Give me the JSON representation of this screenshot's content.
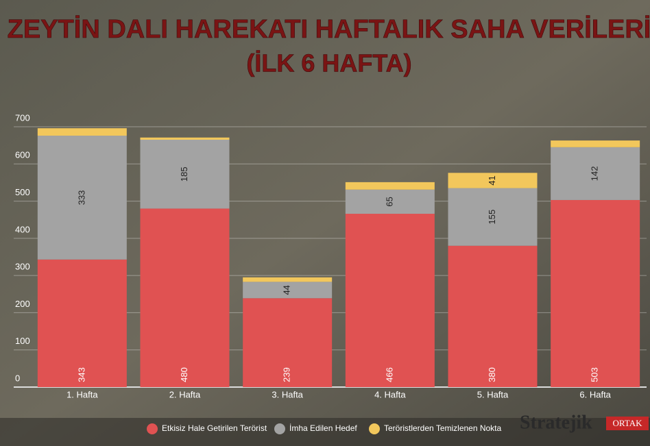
{
  "chart_data": {
    "type": "stacked_bar",
    "title": "ZEYTİN DALI HAREKATI HAFTALIK SAHA VERİLERİ",
    "subtitle": "(İLK 6 HAFTA)",
    "categories": [
      "1. Hafta",
      "2. Hafta",
      "3. Hafta",
      "4. Hafta",
      "5. Hafta",
      "6. Hafta"
    ],
    "series": [
      {
        "name": "Etkisiz Hale Getirilen Terörist",
        "color": "#e05252",
        "values": [
          343,
          480,
          239,
          466,
          380,
          503
        ]
      },
      {
        "name": "İmha Edilen Hedef",
        "color": "#a3a3a3",
        "values": [
          333,
          185,
          44,
          65,
          155,
          142
        ]
      },
      {
        "name": "Teröristlerden Temizlenen Nokta",
        "color": "#f2c75c",
        "values": [
          20,
          6,
          12,
          20,
          41,
          18
        ]
      }
    ],
    "ylim": [
      0,
      700
    ],
    "yticks": [
      0,
      100,
      200,
      300,
      400,
      500,
      600,
      700
    ],
    "grid": true,
    "brand": "Stratejik",
    "brand_tag": "ORTAK"
  }
}
